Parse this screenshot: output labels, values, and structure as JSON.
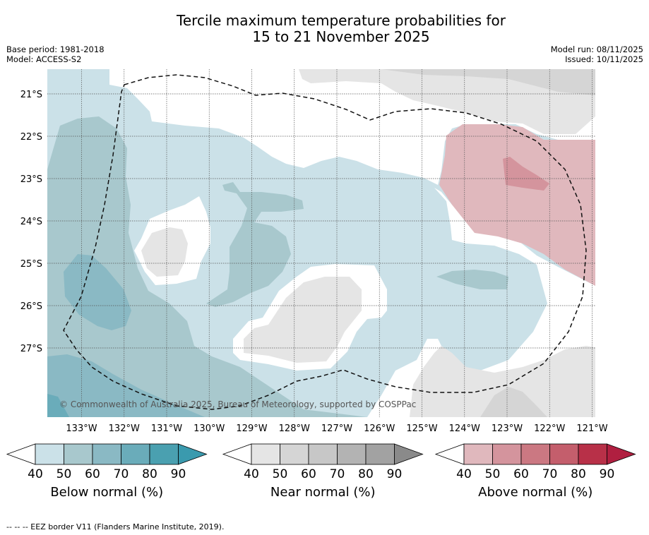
{
  "title": {
    "line1": "Tercile maximum temperature probabilities for",
    "line2": "15 to 21 November 2025"
  },
  "meta": {
    "base_period": "Base period: 1981-2018",
    "model": "Model: ACCESS-S2",
    "model_run": "Model run: 08/11/2025",
    "issued": "Issued: 10/11/2025"
  },
  "lat_labels": [
    "21°S",
    "22°S",
    "23°S",
    "24°S",
    "25°S",
    "26°S",
    "27°S"
  ],
  "lon_labels": [
    "133°W",
    "132°W",
    "131°W",
    "130°W",
    "129°W",
    "128°W",
    "127°W",
    "126°W",
    "125°W",
    "124°W",
    "123°W",
    "122°W",
    "121°W"
  ],
  "copyright": "© Commonwealth of Australia 2025, Bureau of Meteorology, supported by COSPPac",
  "legends": [
    {
      "title": "Below normal (%)",
      "ticks": [
        "40",
        "50",
        "60",
        "70",
        "80",
        "90"
      ],
      "colors": [
        "#ffffff",
        "#cbe1e8",
        "#a8c8cd",
        "#8ab9c4",
        "#6aacba",
        "#4aa0b0",
        "#3a9aae"
      ]
    },
    {
      "title": "Near normal (%)",
      "ticks": [
        "40",
        "50",
        "60",
        "70",
        "80",
        "90"
      ],
      "colors": [
        "#ffffff",
        "#e5e5e5",
        "#d5d5d5",
        "#c7c7c7",
        "#b3b3b3",
        "#a2a2a2",
        "#8a8a8a"
      ]
    },
    {
      "title": "Above normal (%)",
      "ticks": [
        "40",
        "50",
        "60",
        "70",
        "80",
        "90"
      ],
      "colors": [
        "#ffffff",
        "#e0b8bd",
        "#d4949d",
        "#cb7882",
        "#c45e6c",
        "#b83048",
        "#b01f40"
      ]
    }
  ],
  "footnote": "--  --  -- EEZ border V11 (Flanders Marine Institute, 2019).",
  "colors": {
    "below_50": "#cbe1e8",
    "below_60": "#a8c8cd",
    "below_70": "#8ab9c4",
    "below_80": "#6aacba",
    "near_50": "#e5e5e5",
    "near_60": "#d5d5d5",
    "above_50": "#e0b8bd",
    "above_60": "#d4949d"
  }
}
